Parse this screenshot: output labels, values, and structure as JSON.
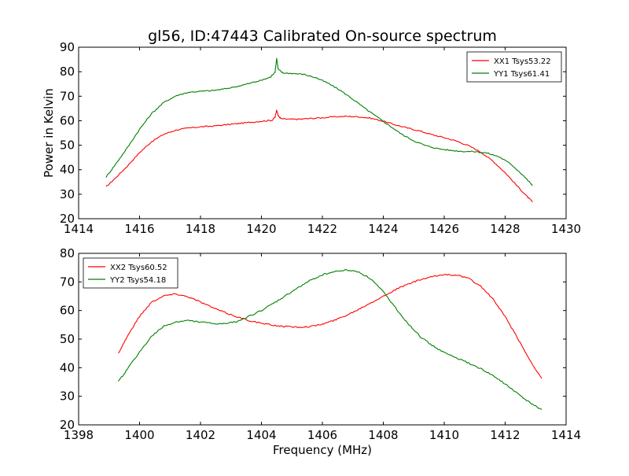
{
  "chart_data": [
    {
      "type": "line",
      "title": "gl56, ID:47443 Calibrated On-source spectrum",
      "xlabel": "",
      "ylabel": "Power in Kelvin",
      "xlim": [
        1414,
        1430
      ],
      "ylim": [
        20,
        90
      ],
      "xticks": [
        1414,
        1416,
        1418,
        1420,
        1422,
        1424,
        1426,
        1428,
        1430
      ],
      "yticks": [
        20,
        30,
        40,
        50,
        60,
        70,
        80,
        90
      ],
      "legend_position": "upper right",
      "grid": false,
      "series": [
        {
          "name": "XX1 Tsys53.22",
          "color": "#ff0000",
          "x": [
            1414.9,
            1415.2,
            1415.6,
            1416.0,
            1416.4,
            1416.8,
            1417.2,
            1417.6,
            1418.0,
            1418.4,
            1418.8,
            1419.2,
            1419.6,
            1420.0,
            1420.35,
            1420.45,
            1420.5,
            1420.55,
            1420.65,
            1420.9,
            1421.2,
            1421.6,
            1422.0,
            1422.4,
            1422.8,
            1423.2,
            1423.6,
            1424.0,
            1424.4,
            1424.8,
            1425.2,
            1425.6,
            1426.0,
            1426.4,
            1426.8,
            1427.2,
            1427.6,
            1428.0,
            1428.4,
            1428.7,
            1428.9
          ],
          "y": [
            33,
            36.5,
            41.5,
            47,
            51.5,
            54.5,
            56.2,
            57.0,
            57.5,
            57.8,
            58.3,
            58.8,
            59.3,
            59.8,
            60.2,
            61.5,
            64.5,
            62,
            60.8,
            60.6,
            60.6,
            60.9,
            61.2,
            61.6,
            61.8,
            61.6,
            61.0,
            59.8,
            58.3,
            57.0,
            55.8,
            54.3,
            53.1,
            51.7,
            49.8,
            47.2,
            43.5,
            38.8,
            33.3,
            29.3,
            26.8
          ]
        },
        {
          "name": "YY1 Tsys61.41",
          "color": "#008000",
          "x": [
            1414.9,
            1415.2,
            1415.6,
            1416.0,
            1416.4,
            1416.8,
            1417.2,
            1417.6,
            1418.0,
            1418.4,
            1418.8,
            1419.2,
            1419.6,
            1420.0,
            1420.3,
            1420.45,
            1420.5,
            1420.55,
            1420.7,
            1421.0,
            1421.4,
            1421.8,
            1422.2,
            1422.6,
            1423.0,
            1423.4,
            1423.8,
            1424.2,
            1424.6,
            1425.0,
            1425.4,
            1425.8,
            1426.2,
            1426.6,
            1427.0,
            1427.4,
            1427.8,
            1428.2,
            1428.6,
            1428.9
          ],
          "y": [
            37,
            42,
            49,
            56.5,
            63,
            67.5,
            70.2,
            71.6,
            72.0,
            72.3,
            73.0,
            74.0,
            75.2,
            76.5,
            77.8,
            80,
            85.5,
            81,
            79.5,
            79.3,
            78.9,
            77.5,
            75.2,
            72.3,
            68.8,
            65.0,
            61.5,
            58.0,
            54.5,
            51.8,
            49.8,
            48.6,
            47.9,
            47.5,
            47.4,
            46.8,
            45.3,
            42.2,
            37.6,
            33.5
          ]
        }
      ]
    },
    {
      "type": "line",
      "title": "",
      "xlabel": "Frequency (MHz)",
      "ylabel": "",
      "xlim": [
        1398,
        1414
      ],
      "ylim": [
        20,
        80
      ],
      "xticks": [
        1398,
        1400,
        1402,
        1404,
        1406,
        1408,
        1410,
        1412,
        1414
      ],
      "yticks": [
        20,
        30,
        40,
        50,
        60,
        70,
        80
      ],
      "legend_position": "upper left",
      "grid": false,
      "series": [
        {
          "name": "XX2 Tsys60.52",
          "color": "#ff0000",
          "x": [
            1399.3,
            1399.6,
            1400.0,
            1400.4,
            1400.8,
            1401.2,
            1401.6,
            1402.0,
            1402.4,
            1402.8,
            1403.2,
            1403.6,
            1404.0,
            1404.4,
            1404.8,
            1405.2,
            1405.6,
            1406.0,
            1406.4,
            1406.8,
            1407.2,
            1407.6,
            1408.0,
            1408.4,
            1408.8,
            1409.2,
            1409.6,
            1410.0,
            1410.4,
            1410.8,
            1411.2,
            1411.6,
            1412.0,
            1412.4,
            1412.8,
            1413.2
          ],
          "y": [
            45,
            51,
            58,
            63,
            65.2,
            65.8,
            64.8,
            63.0,
            61.0,
            59.3,
            57.8,
            56.5,
            55.5,
            54.8,
            54.4,
            54.2,
            54.4,
            55.2,
            56.6,
            58.4,
            60.5,
            62.8,
            65.0,
            67.3,
            69.2,
            70.7,
            71.8,
            72.6,
            72.4,
            71.2,
            68.5,
            64.0,
            57.8,
            50.5,
            42.8,
            36.3
          ]
        },
        {
          "name": "YY2 Tsys54.18",
          "color": "#008000",
          "x": [
            1399.3,
            1399.6,
            1400.0,
            1400.4,
            1400.8,
            1401.2,
            1401.6,
            1402.0,
            1402.4,
            1402.8,
            1403.2,
            1403.6,
            1404.0,
            1404.4,
            1404.8,
            1405.2,
            1405.6,
            1406.0,
            1406.4,
            1406.8,
            1407.2,
            1407.6,
            1408.0,
            1408.4,
            1408.8,
            1409.2,
            1409.6,
            1410.0,
            1410.4,
            1410.8,
            1411.2,
            1411.6,
            1412.0,
            1412.4,
            1412.8,
            1413.2
          ],
          "y": [
            35,
            39.5,
            45.5,
            51,
            54.5,
            56.0,
            56.5,
            56.0,
            55.4,
            55.3,
            56.2,
            58.0,
            60.0,
            62.5,
            65.2,
            68.0,
            70.5,
            72.5,
            73.6,
            74.2,
            73.5,
            71.0,
            66.5,
            61.0,
            55.5,
            51.0,
            47.8,
            45.3,
            43.4,
            41.6,
            39.6,
            37.2,
            34.3,
            31.0,
            27.8,
            25.3
          ]
        }
      ]
    }
  ]
}
